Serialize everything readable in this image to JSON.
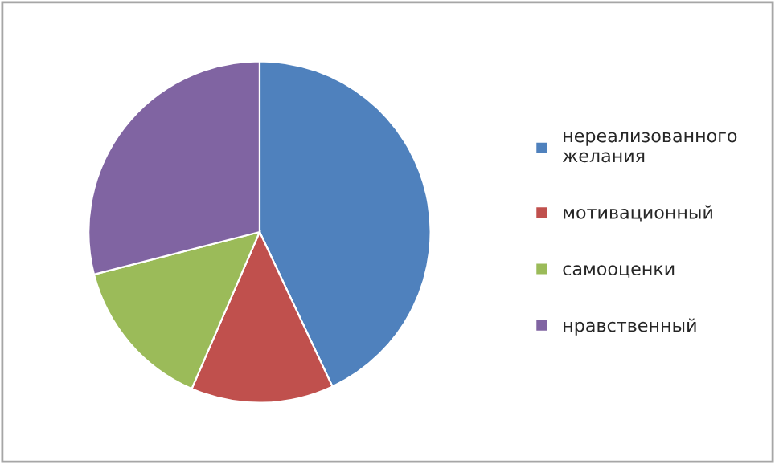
{
  "chart_data": {
    "type": "pie",
    "categories": [
      "нереализованного желания",
      "мотивационный",
      "самооценки",
      "нравственный"
    ],
    "values": [
      43,
      13.5,
      14.5,
      29
    ],
    "colors": [
      "#4f81bd",
      "#c0504d",
      "#9bbb59",
      "#8064a2"
    ],
    "legend": "right"
  }
}
